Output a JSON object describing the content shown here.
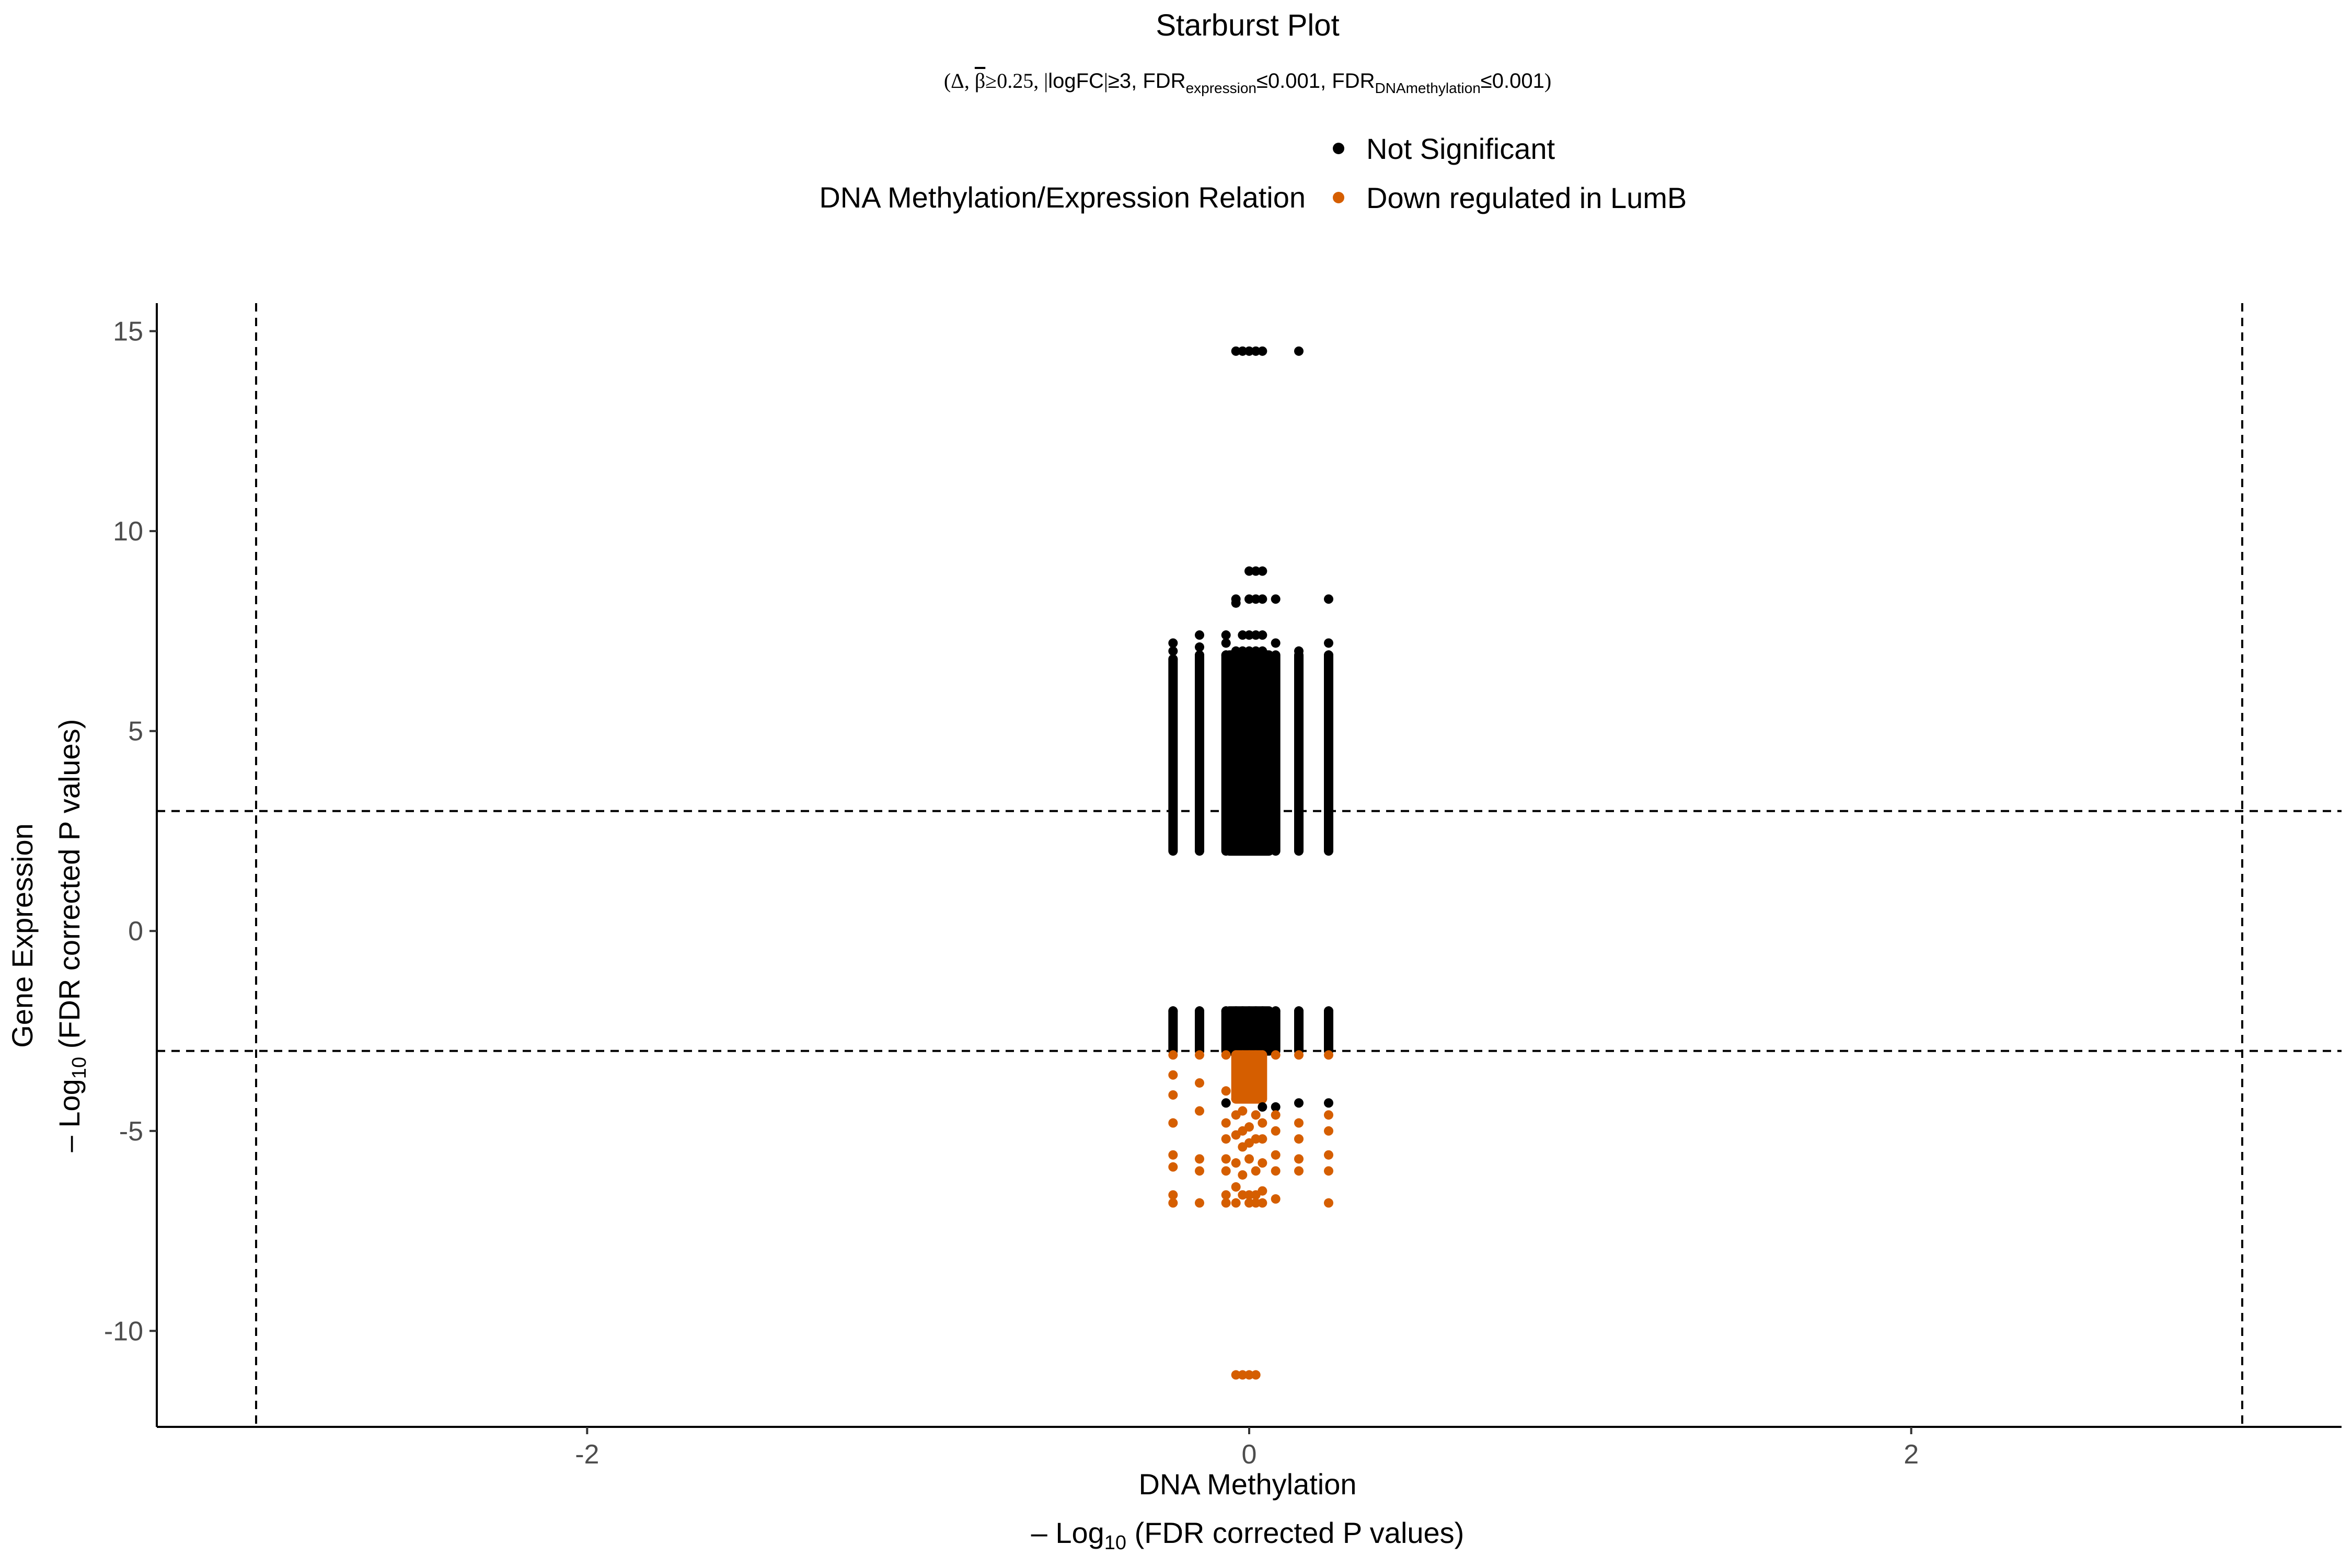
{
  "chart_data": {
    "type": "scatter",
    "title": "Starburst Plot",
    "subtitle": {
      "open": "(",
      "delta": "Δ, ",
      "beta": "β",
      "beta_rest": "≥0.25, ",
      "abs_left": "|",
      "logfc": "logFC",
      "abs_right": "|",
      "logfc_rest": "≥3, FDR",
      "sub_expr": "expression",
      "mid": "≤0.001, FDR",
      "sub_meth": "DNAmethylation",
      "end": "≤0.001",
      "close": ")"
    },
    "legend": {
      "title": "DNA Methylation/Expression Relation",
      "position": "top",
      "items": [
        {
          "label": "Not Significant",
          "color": "#000000"
        },
        {
          "label": "Down regulated in LumB",
          "color": "#D55E00"
        }
      ]
    },
    "xlabel": {
      "line1": "DNA Methylation",
      "prefix": "– Log",
      "sub": "10",
      "suffix": " (FDR corrected P values)"
    },
    "ylabel": {
      "line1": "Gene Expression",
      "prefix": "– Log",
      "sub": "10",
      "suffix": " (FDR corrected P values)"
    },
    "xlim": [
      -3.3,
      3.3
    ],
    "ylim": [
      -12.4,
      15.7
    ],
    "x_ticks": [
      {
        "value": -2,
        "label": "-2"
      },
      {
        "value": 0,
        "label": "0"
      },
      {
        "value": 2,
        "label": "2"
      }
    ],
    "y_ticks": [
      {
        "value": 15,
        "label": "15"
      },
      {
        "value": 10,
        "label": "10"
      },
      {
        "value": 5,
        "label": "5"
      },
      {
        "value": 0,
        "label": "0"
      },
      {
        "value": -5,
        "label": "-5"
      },
      {
        "value": -10,
        "label": "-10"
      }
    ],
    "thresholds": {
      "x": [
        -3,
        3
      ],
      "y": [
        -3,
        3
      ]
    },
    "grid": false,
    "columns_x": [
      -0.23,
      -0.15,
      -0.07,
      -0.04,
      -0.02,
      0.0,
      0.02,
      0.04,
      0.08,
      0.15,
      0.24
    ],
    "series": [
      {
        "name": "Not Significant",
        "color": "#000000",
        "points": [
          [
            -0.23,
            7.2
          ],
          [
            -0.23,
            7.0
          ],
          [
            -0.23,
            6.8
          ],
          [
            -0.15,
            7.4
          ],
          [
            -0.15,
            7.1
          ],
          [
            -0.15,
            6.9
          ],
          [
            -0.07,
            7.4
          ],
          [
            -0.07,
            7.2
          ],
          [
            -0.07,
            6.9
          ],
          [
            -0.04,
            8.3
          ],
          [
            -0.04,
            8.2
          ],
          [
            -0.02,
            7.4
          ],
          [
            0.0,
            7.4
          ],
          [
            0.02,
            7.4
          ],
          [
            0.04,
            7.4
          ],
          [
            0.0,
            8.3
          ],
          [
            0.02,
            8.3
          ],
          [
            0.04,
            8.3
          ],
          [
            0.08,
            8.3
          ],
          [
            0.24,
            8.3
          ],
          [
            0.0,
            9.0
          ],
          [
            0.02,
            9.0
          ],
          [
            0.04,
            9.0
          ],
          [
            -0.04,
            7.0
          ],
          [
            -0.02,
            7.0
          ],
          [
            0.0,
            7.0
          ],
          [
            0.02,
            7.0
          ],
          [
            0.04,
            7.0
          ],
          [
            0.08,
            7.2
          ],
          [
            0.15,
            7.0
          ],
          [
            0.24,
            7.2
          ],
          [
            0.24,
            6.9
          ],
          [
            -0.04,
            14.5
          ],
          [
            -0.02,
            14.5
          ],
          [
            0.0,
            14.5
          ],
          [
            0.02,
            14.5
          ],
          [
            0.04,
            14.5
          ],
          [
            0.15,
            14.5
          ],
          [
            -0.23,
            -2.0
          ],
          [
            -0.15,
            -2.0
          ],
          [
            -0.07,
            -2.0
          ],
          [
            -0.04,
            -2.0
          ],
          [
            -0.02,
            -2.0
          ],
          [
            0.0,
            -2.0
          ],
          [
            0.02,
            -2.0
          ],
          [
            0.04,
            -2.0
          ],
          [
            0.08,
            -2.0
          ],
          [
            0.15,
            -2.0
          ],
          [
            0.24,
            -2.0
          ],
          [
            -0.07,
            -4.3
          ],
          [
            0.04,
            -4.4
          ],
          [
            0.08,
            -4.4
          ],
          [
            0.15,
            -4.3
          ],
          [
            0.24,
            -4.3
          ]
        ]
      },
      {
        "name": "Down regulated in LumB",
        "color": "#D55E00",
        "points": [
          [
            -0.23,
            -3.1
          ],
          [
            -0.23,
            -3.6
          ],
          [
            -0.23,
            -4.1
          ],
          [
            -0.23,
            -4.8
          ],
          [
            -0.23,
            -5.6
          ],
          [
            -0.23,
            -5.9
          ],
          [
            -0.23,
            -6.6
          ],
          [
            -0.23,
            -6.8
          ],
          [
            -0.15,
            -3.1
          ],
          [
            -0.15,
            -3.8
          ],
          [
            -0.15,
            -4.5
          ],
          [
            -0.15,
            -5.7
          ],
          [
            -0.15,
            -6.0
          ],
          [
            -0.15,
            -6.8
          ],
          [
            -0.07,
            -3.1
          ],
          [
            -0.07,
            -4.0
          ],
          [
            -0.07,
            -4.8
          ],
          [
            -0.07,
            -5.2
          ],
          [
            -0.07,
            -5.7
          ],
          [
            -0.07,
            -6.0
          ],
          [
            -0.07,
            -6.6
          ],
          [
            -0.07,
            -6.8
          ],
          [
            -0.04,
            -3.1
          ],
          [
            -0.04,
            -4.2
          ],
          [
            -0.04,
            -4.6
          ],
          [
            -0.04,
            -5.1
          ],
          [
            -0.04,
            -5.8
          ],
          [
            -0.04,
            -6.4
          ],
          [
            -0.04,
            -6.8
          ],
          [
            -0.02,
            -3.1
          ],
          [
            -0.02,
            -4.5
          ],
          [
            -0.02,
            -5.0
          ],
          [
            -0.02,
            -5.4
          ],
          [
            -0.02,
            -6.1
          ],
          [
            -0.02,
            -6.6
          ],
          [
            0.0,
            -3.1
          ],
          [
            0.0,
            -4.9
          ],
          [
            0.0,
            -5.3
          ],
          [
            0.0,
            -5.7
          ],
          [
            0.0,
            -6.6
          ],
          [
            0.0,
            -6.8
          ],
          [
            0.02,
            -3.1
          ],
          [
            0.02,
            -4.6
          ],
          [
            0.02,
            -5.2
          ],
          [
            0.02,
            -6.0
          ],
          [
            0.02,
            -6.6
          ],
          [
            0.02,
            -6.8
          ],
          [
            0.04,
            -3.1
          ],
          [
            0.04,
            -4.8
          ],
          [
            0.04,
            -5.2
          ],
          [
            0.04,
            -5.8
          ],
          [
            0.04,
            -6.5
          ],
          [
            0.04,
            -6.8
          ],
          [
            0.08,
            -3.1
          ],
          [
            0.08,
            -4.6
          ],
          [
            0.08,
            -5.0
          ],
          [
            0.08,
            -5.6
          ],
          [
            0.08,
            -6.0
          ],
          [
            0.08,
            -6.7
          ],
          [
            0.15,
            -3.1
          ],
          [
            0.15,
            -4.8
          ],
          [
            0.15,
            -5.2
          ],
          [
            0.15,
            -5.7
          ],
          [
            0.15,
            -6.0
          ],
          [
            0.24,
            -3.1
          ],
          [
            0.24,
            -4.6
          ],
          [
            0.24,
            -5.0
          ],
          [
            0.24,
            -5.6
          ],
          [
            0.24,
            -6.0
          ],
          [
            0.24,
            -6.8
          ],
          [
            -0.04,
            -11.1
          ],
          [
            -0.02,
            -11.1
          ],
          [
            0.0,
            -11.1
          ],
          [
            0.02,
            -11.1
          ]
        ]
      }
    ],
    "dense_bands": [
      {
        "series": "Not Significant",
        "x_from": -0.06,
        "x_to": 0.06,
        "y_from": 2.0,
        "y_to": 6.9
      },
      {
        "series": "Not Significant",
        "x_from": -0.06,
        "x_to": 0.06,
        "y_from": -3.0,
        "y_to": -2.0
      },
      {
        "series": "Down regulated in LumB",
        "x_from": -0.04,
        "x_to": 0.04,
        "y_from": -4.2,
        "y_to": -3.1
      }
    ],
    "column_ranges": [
      {
        "x": -0.23,
        "y_from": 2.0,
        "y_to": 6.8
      },
      {
        "x": -0.15,
        "y_from": 2.0,
        "y_to": 6.9
      },
      {
        "x": -0.07,
        "y_from": 2.0,
        "y_to": 6.9
      },
      {
        "x": 0.08,
        "y_from": 2.0,
        "y_to": 6.9
      },
      {
        "x": 0.15,
        "y_from": 2.0,
        "y_to": 6.9
      },
      {
        "x": 0.24,
        "y_from": 2.0,
        "y_to": 6.9
      },
      {
        "x": -0.23,
        "y_from": -3.0,
        "y_to": -2.0
      },
      {
        "x": -0.15,
        "y_from": -3.0,
        "y_to": -2.0
      },
      {
        "x": -0.07,
        "y_from": -3.0,
        "y_to": -2.0
      },
      {
        "x": 0.08,
        "y_from": -3.0,
        "y_to": -2.0
      },
      {
        "x": 0.15,
        "y_from": -3.0,
        "y_to": -2.0
      },
      {
        "x": 0.24,
        "y_from": -3.0,
        "y_to": -2.0
      }
    ]
  }
}
